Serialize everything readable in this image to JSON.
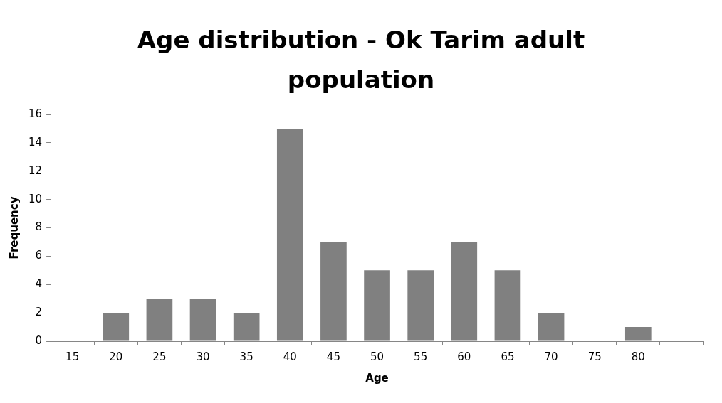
{
  "chart_data": {
    "type": "bar",
    "title": "Age distribution - Ok Tarim adult population",
    "xlabel": "Age",
    "ylabel": "Frequency",
    "categories": [
      "15",
      "20",
      "25",
      "30",
      "35",
      "40",
      "45",
      "50",
      "55",
      "60",
      "65",
      "70",
      "75",
      "80",
      null
    ],
    "values": [
      0,
      2,
      3,
      3,
      2,
      15,
      7,
      5,
      5,
      7,
      5,
      2,
      0,
      1,
      0
    ],
    "color": "#808080",
    "ylim": [
      0,
      16
    ],
    "yticks": [
      0,
      2,
      4,
      6,
      8,
      10,
      12,
      14,
      16
    ],
    "grid": false,
    "legend": false
  }
}
